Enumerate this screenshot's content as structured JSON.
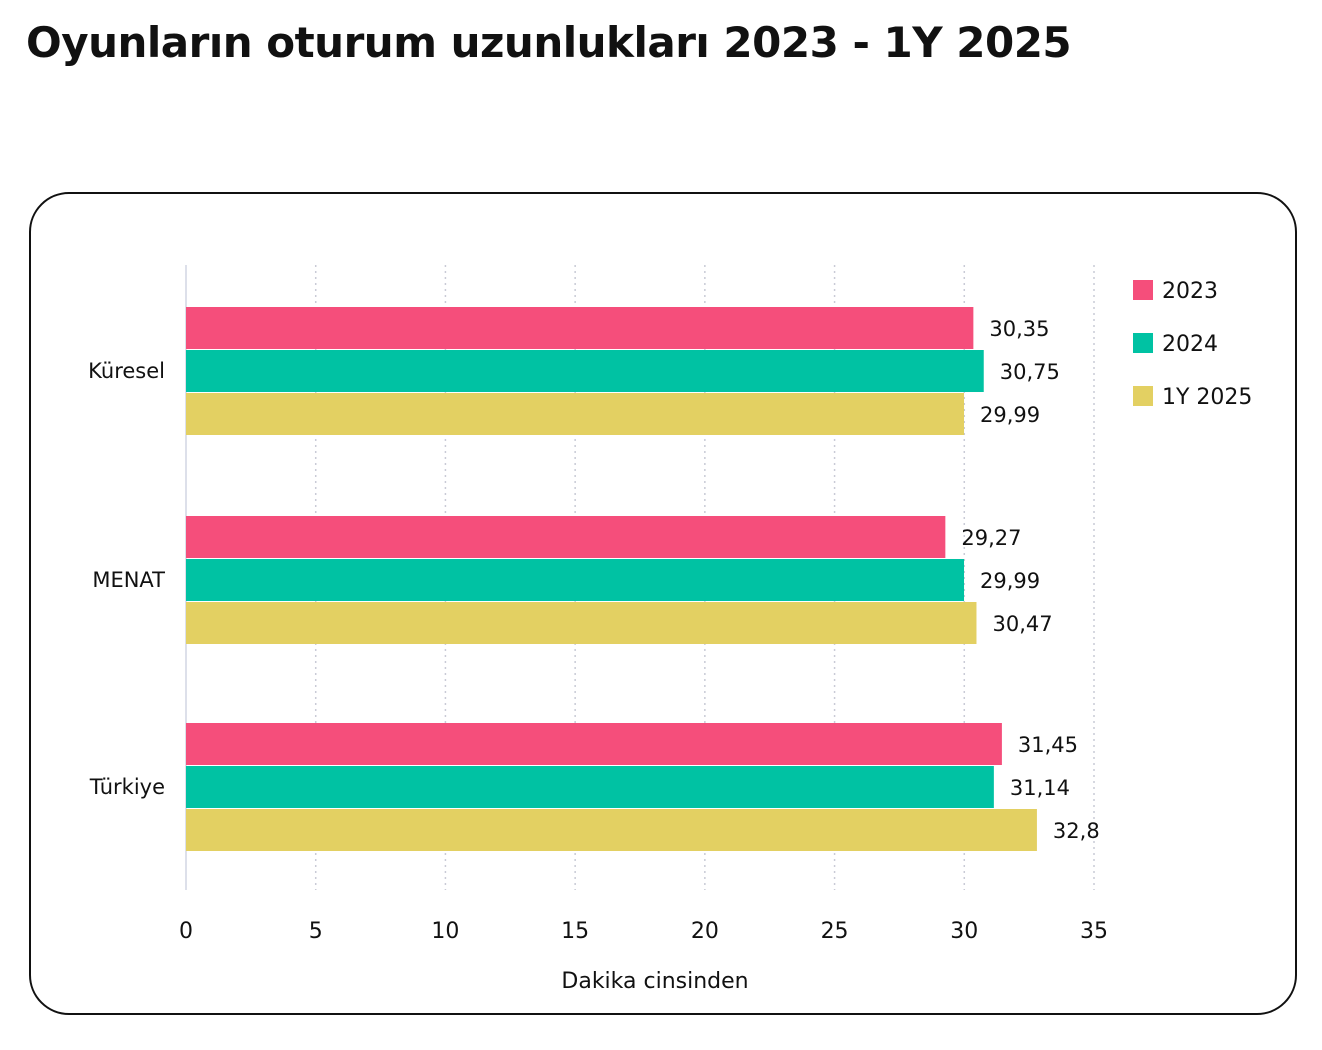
{
  "chart_data": {
    "type": "bar",
    "orientation": "horizontal",
    "title": "Oyunların oturum uzunlukları 2023 - 1Y 2025",
    "xlabel": "Dakika cinsinden",
    "ylabel": "",
    "xlim": [
      0,
      35
    ],
    "xticks": [
      0,
      5,
      10,
      15,
      20,
      25,
      30,
      35
    ],
    "grid": true,
    "legend_position": "top-right",
    "categories": [
      "Küresel",
      "MENAT",
      "Türkiye"
    ],
    "series": [
      {
        "name": "2023",
        "color": "#F54E7B",
        "values": [
          30.35,
          29.27,
          31.45
        ],
        "labels": [
          "30,35",
          "29,27",
          "31,45"
        ]
      },
      {
        "name": "2024",
        "color": "#00C2A3",
        "values": [
          30.75,
          29.99,
          31.14
        ],
        "labels": [
          "30,75",
          "29,99",
          "31,14"
        ]
      },
      {
        "name": "1Y 2025",
        "color": "#E3D062",
        "values": [
          29.99,
          30.47,
          32.8
        ],
        "labels": [
          "29,99",
          "30,47",
          "32,8"
        ]
      }
    ]
  }
}
